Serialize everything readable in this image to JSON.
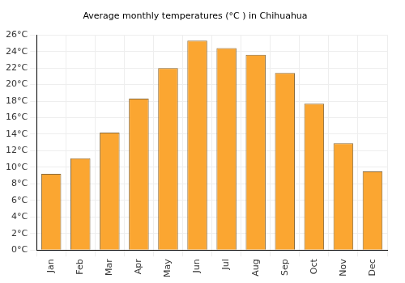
{
  "chart_data": {
    "type": "bar",
    "title": "Average monthly temperatures (°C ) in Chihuahua",
    "categories": [
      "Jan",
      "Feb",
      "Mar",
      "Apr",
      "May",
      "Jun",
      "Jul",
      "Aug",
      "Sep",
      "Oct",
      "Nov",
      "Dec"
    ],
    "values": [
      9.2,
      11.1,
      14.2,
      18.3,
      22.0,
      25.3,
      24.4,
      23.6,
      21.4,
      17.7,
      12.9,
      9.5
    ],
    "color": "#fba631",
    "ylim": [
      0,
      26
    ],
    "yticks": [
      {
        "value": 0,
        "label": "0°C"
      },
      {
        "value": 2,
        "label": "2°C"
      },
      {
        "value": 4,
        "label": "4°C"
      },
      {
        "value": 6,
        "label": "6°C"
      },
      {
        "value": 8,
        "label": "8°C"
      },
      {
        "value": 10,
        "label": "10°C"
      },
      {
        "value": 12,
        "label": "12°C"
      },
      {
        "value": 14,
        "label": "14°C"
      },
      {
        "value": 16,
        "label": "16°C"
      },
      {
        "value": 18,
        "label": "18°C"
      },
      {
        "value": 20,
        "label": "20°C"
      },
      {
        "value": 22,
        "label": "22°C"
      },
      {
        "value": 24,
        "label": "24°C"
      },
      {
        "value": 26,
        "label": "26°C"
      }
    ],
    "grid": true
  }
}
